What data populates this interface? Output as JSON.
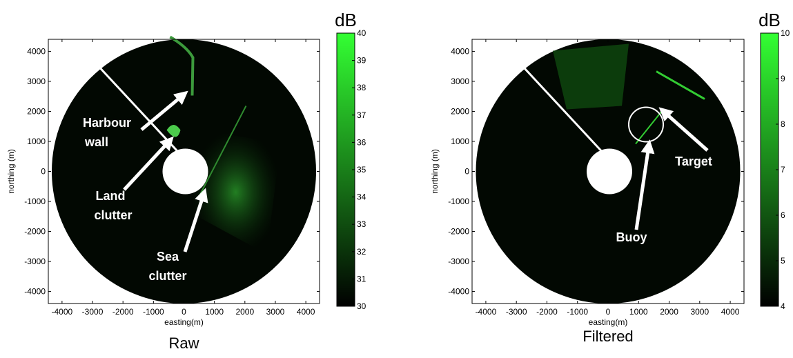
{
  "chart_data": [
    {
      "type": "radar-image",
      "caption": "Raw",
      "xlabel": "easting(m)",
      "ylabel": "northing (m)",
      "xlim": [
        -4450,
        4450
      ],
      "ylim": [
        -4400,
        4400
      ],
      "xticks": [
        -4000,
        -3000,
        -2000,
        -1000,
        0,
        1000,
        2000,
        3000,
        4000
      ],
      "yticks": [
        -4000,
        -3000,
        -2000,
        -1000,
        0,
        1000,
        2000,
        3000,
        4000
      ],
      "colorbar": {
        "title": "dB",
        "lim": [
          30,
          40
        ],
        "ticks": [
          30,
          31,
          32,
          33,
          34,
          35,
          36,
          37,
          38,
          39,
          40
        ],
        "color": "#33ff33"
      },
      "annotations": [
        [
          "Harbour",
          "wall"
        ],
        [
          "Land",
          "clutter"
        ],
        [
          "Sea",
          "clutter"
        ]
      ]
    },
    {
      "type": "radar-image",
      "caption": "Filtered",
      "xlabel": "easting(m)",
      "ylabel": "northing (m)",
      "xlim": [
        -4450,
        4450
      ],
      "ylim": [
        -4400,
        4400
      ],
      "xticks": [
        -4000,
        -3000,
        -2000,
        -1000,
        0,
        1000,
        2000,
        3000,
        4000
      ],
      "yticks": [
        -4000,
        -3000,
        -2000,
        -1000,
        0,
        1000,
        2000,
        3000,
        4000
      ],
      "colorbar": {
        "title": "dB",
        "lim": [
          4,
          10
        ],
        "ticks": [
          4,
          5,
          6,
          7,
          8,
          9,
          10
        ],
        "color": "#33ff33"
      },
      "annotations": [
        [
          "Target"
        ],
        [
          "Buoy"
        ]
      ]
    }
  ]
}
